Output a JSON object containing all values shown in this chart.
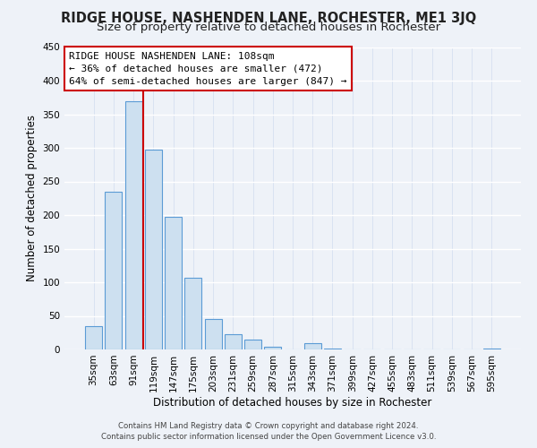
{
  "title": "RIDGE HOUSE, NASHENDEN LANE, ROCHESTER, ME1 3JQ",
  "subtitle": "Size of property relative to detached houses in Rochester",
  "xlabel": "Distribution of detached houses by size in Rochester",
  "ylabel": "Number of detached properties",
  "bar_labels": [
    "35sqm",
    "63sqm",
    "91sqm",
    "119sqm",
    "147sqm",
    "175sqm",
    "203sqm",
    "231sqm",
    "259sqm",
    "287sqm",
    "315sqm",
    "343sqm",
    "371sqm",
    "399sqm",
    "427sqm",
    "455sqm",
    "483sqm",
    "511sqm",
    "539sqm",
    "567sqm",
    "595sqm"
  ],
  "bar_values": [
    35,
    235,
    370,
    298,
    198,
    107,
    46,
    23,
    15,
    4,
    0,
    10,
    1,
    0,
    0,
    0,
    0,
    0,
    0,
    0,
    2
  ],
  "bar_color": "#cde0f0",
  "bar_edge_color": "#5b9bd5",
  "vline_color": "#cc0000",
  "vline_x": 2.5,
  "ylim": [
    0,
    450
  ],
  "yticks": [
    0,
    50,
    100,
    150,
    200,
    250,
    300,
    350,
    400,
    450
  ],
  "annotation_text": "RIDGE HOUSE NASHENDEN LANE: 108sqm\n← 36% of detached houses are smaller (472)\n64% of semi-detached houses are larger (847) →",
  "footer_line1": "Contains HM Land Registry data © Crown copyright and database right 2024.",
  "footer_line2": "Contains public sector information licensed under the Open Government Licence v3.0.",
  "bg_color": "#eef2f8",
  "grid_color": "#d8e4f0",
  "title_fontsize": 10.5,
  "subtitle_fontsize": 9.5,
  "ylabel_fontsize": 8.5,
  "xlabel_fontsize": 8.5,
  "tick_fontsize": 7.5,
  "annot_fontsize": 8,
  "footer_fontsize": 6.2
}
